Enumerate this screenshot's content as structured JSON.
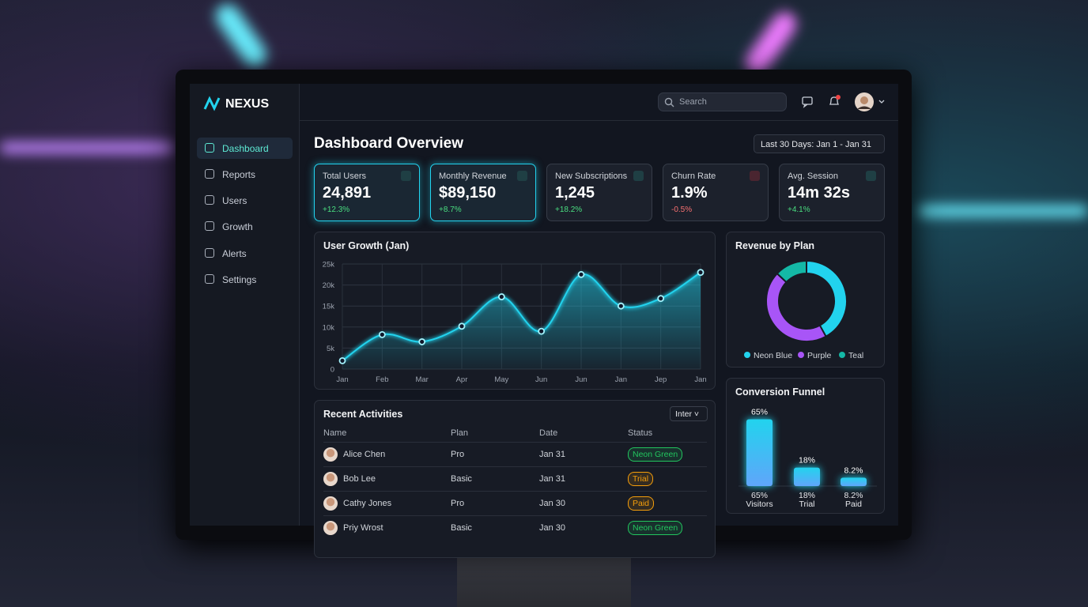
{
  "sidebar": {
    "logo": "NEXUS",
    "nav": [
      "Dashboard",
      "Reports",
      "Users",
      "Growth",
      "Alerts",
      "Settings"
    ],
    "active": 0
  },
  "header": {
    "search_placeholder": "Search"
  },
  "page": {
    "title": "Dashboard Overview",
    "date_range": "Last 30 Days: Jan 1 - Jan 31"
  },
  "kpis": [
    {
      "label": "Total Users",
      "value": "24,891",
      "change": "+12.3%",
      "direction": "up",
      "highlight": true
    },
    {
      "label": "Monthly Revenue",
      "value": "$89,150",
      "change": "+8.7%",
      "direction": "up",
      "highlight": true
    },
    {
      "label": "New Subscriptions",
      "value": "1,245",
      "change": "+18.2%",
      "direction": "up",
      "highlight": false
    },
    {
      "label": "Churn Rate",
      "value": "1.9%",
      "change": "-0.5%",
      "direction": "down",
      "highlight": false
    },
    {
      "label": "Avg. Session",
      "value": "14m 32s",
      "change": "+4.1%",
      "direction": "up",
      "highlight": false
    }
  ],
  "user_growth": {
    "chart_data": {
      "type": "line",
      "title": "User Growth (Jan)",
      "categories": [
        "Jan",
        "Feb",
        "Mar",
        "Apr",
        "May",
        "Jun",
        "Jun",
        "Jan",
        "Jep",
        "Jan"
      ],
      "values": [
        2000,
        8200,
        6500,
        10200,
        17200,
        9000,
        22500,
        15000,
        16800,
        23000
      ],
      "color": "#22d3ee",
      "ylim": [
        0,
        25000
      ],
      "yticks": [
        0,
        {
          "value": 5000,
          "label": "5k"
        },
        {
          "value": 10000,
          "label": "10k"
        },
        {
          "value": 15000,
          "label": "15k"
        },
        {
          "value": 20000,
          "label": "20k"
        },
        {
          "value": 25000,
          "label": "25k"
        }
      ],
      "grid": true
    }
  },
  "revenue_by_plan": {
    "chart_data": {
      "type": "pie",
      "title": "Revenue by Plan",
      "categories": [
        "Neon Blue",
        "Purple",
        "Teal"
      ],
      "values": [
        42,
        45,
        13
      ],
      "colors": [
        "#22d3ee",
        "#a855f7",
        "#14b8a6"
      ],
      "donut": true,
      "legend": "bottom"
    }
  },
  "activities": {
    "title": "Recent Activities",
    "filter": "Inter",
    "columns": [
      "Name",
      "Plan",
      "Date",
      "Status"
    ],
    "rows": [
      {
        "name": "Alice Chen",
        "plan": "Pro",
        "date": "Jan 31",
        "status": "Neon Green",
        "status_color": "#22c55e"
      },
      {
        "name": "Bob Lee",
        "plan": "Basic",
        "date": "Jan 31",
        "status": "Trial",
        "status_color": "#f59e0b"
      },
      {
        "name": "Cathy Jones",
        "plan": "Pro",
        "date": "Jan 30",
        "status": "Paid",
        "status_color": "#f59e0b"
      },
      {
        "name": "Priy Wrost",
        "plan": "Basic",
        "date": "Jan 30",
        "status": "Neon Green",
        "status_color": "#22c55e"
      }
    ]
  },
  "conversion_funnel": {
    "chart_data": {
      "type": "bar",
      "title": "Conversion Funnel",
      "categories": [
        "Visitors",
        "Trial",
        "Paid"
      ],
      "values": [
        65,
        18,
        8.2
      ],
      "value_labels": [
        "65%",
        "18%",
        "8.2%"
      ],
      "color": "#22d3ee"
    }
  }
}
